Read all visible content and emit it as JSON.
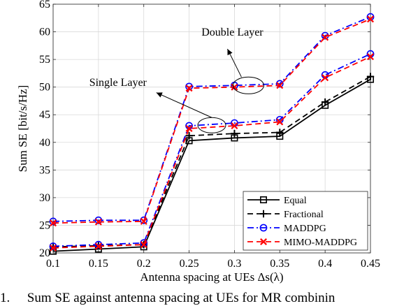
{
  "caption": {
    "number": "1.",
    "text": "Sum SE against antenna spacing at UEs for MR combinin"
  },
  "chart_data": {
    "type": "line",
    "xlabel": "Antenna spacing at UEs Δs(λ)",
    "ylabel": "Sum SE [bit/s/Hz]",
    "xlim": [
      0.1,
      0.45
    ],
    "ylim": [
      20,
      65
    ],
    "xticks": [
      0.1,
      0.15,
      0.2,
      0.25,
      0.3,
      0.35,
      0.4,
      0.45
    ],
    "xtick_labels": [
      "0.1",
      "0.15",
      "0.2",
      "0.25",
      "0.3",
      "0.35",
      "0.4",
      "0.45"
    ],
    "yticks": [
      20,
      25,
      30,
      35,
      40,
      45,
      50,
      55,
      60,
      65
    ],
    "ytick_labels": [
      "20",
      "25",
      "30",
      "35",
      "40",
      "45",
      "50",
      "55",
      "60",
      "65"
    ],
    "grid": true,
    "legend_position": "bottom-right",
    "x": [
      0.1,
      0.15,
      0.2,
      0.25,
      0.3,
      0.35,
      0.4,
      0.45
    ],
    "series": [
      {
        "name": "Equal",
        "color": "#000000",
        "dash": "solid",
        "marker": "square",
        "values": [
          20.3,
          20.7,
          21.1,
          40.3,
          40.8,
          41.1,
          46.7,
          51.4
        ]
      },
      {
        "name": "Fractional",
        "color": "#000000",
        "dash": "dashed",
        "marker": "plus",
        "values": [
          21.1,
          21.3,
          21.5,
          41.2,
          41.6,
          41.8,
          47.3,
          51.9
        ]
      },
      {
        "name": "MADDPG",
        "color": "#0000ff",
        "dash": "dashdot",
        "marker": "circle",
        "values": [
          21.2,
          21.5,
          21.8,
          43.0,
          43.5,
          44.1,
          52.2,
          56.0
        ]
      },
      {
        "name": "MIMO-MADDPG",
        "color": "#ff0000",
        "dash": "dashed",
        "marker": "x",
        "values": [
          20.9,
          21.2,
          21.5,
          42.5,
          43.0,
          43.7,
          51.7,
          55.5
        ]
      }
    ],
    "series_double_layer": [
      {
        "name": "MADDPG",
        "color": "#0000ff",
        "dash": "dashdot",
        "marker": "circle",
        "values": [
          25.7,
          25.9,
          25.9,
          50.1,
          50.3,
          50.6,
          59.3,
          62.7
        ]
      },
      {
        "name": "MIMO-MADDPG",
        "color": "#ff0000",
        "dash": "dashed",
        "marker": "x",
        "values": [
          25.4,
          25.6,
          25.7,
          49.8,
          50.0,
          50.3,
          59.0,
          62.3
        ]
      }
    ],
    "annotations": [
      {
        "text": "Double Layer",
        "target": "ellipse-at-x-0.3-y-50.3"
      },
      {
        "text": "Single Layer",
        "target": "ellipse-at-x-0.27-y-43"
      }
    ]
  }
}
